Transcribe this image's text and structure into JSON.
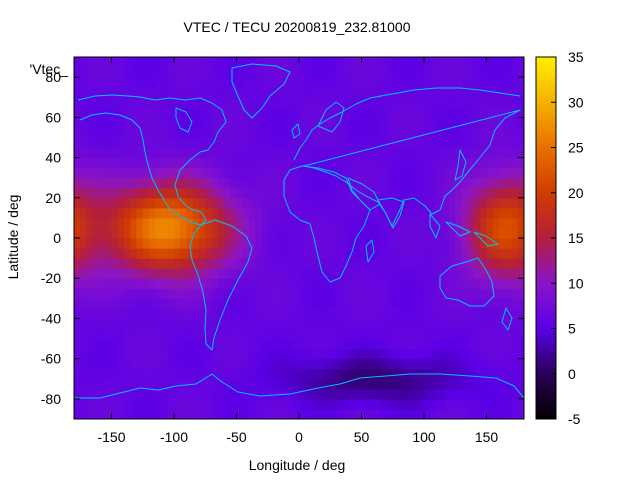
{
  "chart_data": {
    "type": "heatmap",
    "title": "VTEC / TECU 20200819_232.81000",
    "xlabel": "Longitude / deg",
    "ylabel": "Latitude / deg",
    "xlim": [
      -180,
      180
    ],
    "ylim": [
      -90,
      90
    ],
    "x_ticks": [
      -150,
      -100,
      -50,
      0,
      50,
      100,
      150
    ],
    "y_ticks": [
      -80,
      -60,
      -40,
      -20,
      0,
      20,
      40,
      60,
      80
    ],
    "x_tick_labels": [
      "-150",
      "-100",
      "-50",
      "0",
      "50",
      "100",
      "150"
    ],
    "y_tick_labels": [
      "-80",
      "-60",
      "-40",
      "-20",
      "0",
      "20",
      "40",
      "60",
      "80"
    ],
    "colorbar": {
      "range": [
        -5,
        35
      ],
      "ticks": [
        -5,
        0,
        5,
        10,
        15,
        20,
        25,
        30,
        35
      ],
      "tick_labels": [
        "-5",
        "0",
        "5",
        "10",
        "15",
        "20",
        "25",
        "30",
        "35"
      ],
      "palette": "black-purple-red-orange-yellow"
    },
    "legend_label": "'Vtec_",
    "background_level": 6,
    "features": [
      {
        "name": "American equatorial anomaly",
        "lon": -105,
        "lat": 5,
        "peak": 27
      },
      {
        "name": "Asia-Pacific equatorial anomaly",
        "lon": 165,
        "lat": 5,
        "peak": 21
      },
      {
        "name": "Southern polar minimum",
        "lon": 60,
        "lat": -70,
        "peak": 1
      }
    ],
    "coastline_color": "#00bfff"
  }
}
